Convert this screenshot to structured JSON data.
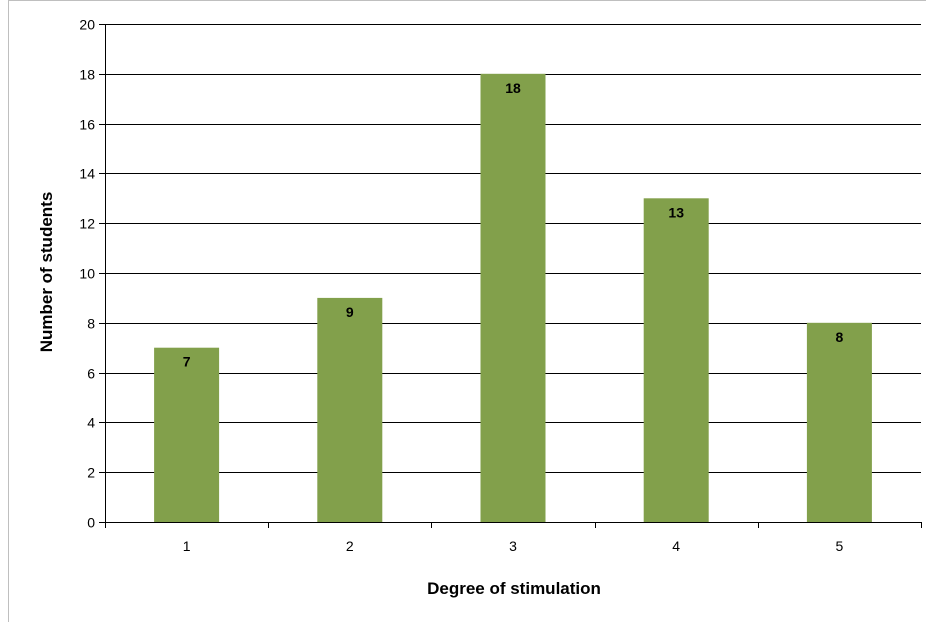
{
  "chart_data": {
    "type": "bar",
    "categories": [
      "1",
      "2",
      "3",
      "4",
      "5"
    ],
    "values": [
      7,
      9,
      18,
      13,
      8
    ],
    "data_labels": [
      "7",
      "9",
      "18",
      "13",
      "8"
    ],
    "xlabel": "Degree of stimulation",
    "ylabel": "Number of students",
    "ylim": [
      0,
      20
    ],
    "yticks": [
      "0",
      "2",
      "4",
      "6",
      "8",
      "10",
      "12",
      "14",
      "16",
      "18",
      "20"
    ],
    "grid": true,
    "legend": "none",
    "bar_color": "#82a04b"
  }
}
